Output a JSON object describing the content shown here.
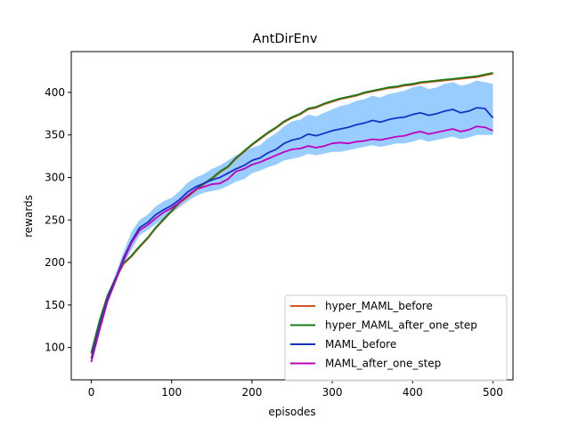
{
  "chart_data": {
    "type": "line",
    "title": "AntDirEnv",
    "xlabel": "episodes",
    "ylabel": "rewards",
    "xlim": [
      -25,
      525
    ],
    "ylim": [
      62,
      448
    ],
    "xticks": [
      0,
      100,
      200,
      300,
      400,
      500
    ],
    "yticks": [
      100,
      150,
      200,
      250,
      300,
      350,
      400
    ],
    "grid": false,
    "legend_position": "lower-right",
    "shaded_band": {
      "color": "#1e90ff",
      "around_series": "MAML_before",
      "x": [
        0,
        10,
        20,
        30,
        40,
        50,
        60,
        70,
        80,
        90,
        100,
        110,
        120,
        130,
        140,
        150,
        160,
        170,
        180,
        190,
        200,
        210,
        220,
        230,
        240,
        250,
        260,
        270,
        280,
        290,
        300,
        310,
        320,
        330,
        340,
        350,
        360,
        370,
        380,
        390,
        400,
        410,
        420,
        430,
        440,
        450,
        460,
        470,
        480,
        490,
        500
      ],
      "lower": [
        80,
        118,
        152,
        175,
        198,
        215,
        232,
        238,
        245,
        252,
        258,
        265,
        272,
        278,
        282,
        284,
        286,
        290,
        295,
        298,
        305,
        308,
        312,
        315,
        320,
        322,
        324,
        328,
        326,
        328,
        330,
        330,
        332,
        334,
        336,
        338,
        336,
        338,
        340,
        340,
        342,
        345,
        342,
        344,
        346,
        348,
        345,
        347,
        350,
        350,
        350
      ],
      "upper": [
        95,
        132,
        162,
        186,
        212,
        236,
        250,
        256,
        266,
        272,
        276,
        284,
        294,
        300,
        304,
        310,
        314,
        320,
        326,
        330,
        335,
        338,
        346,
        352,
        360,
        366,
        368,
        374,
        372,
        376,
        380,
        384,
        386,
        390,
        392,
        396,
        394,
        398,
        400,
        402,
        406,
        408,
        404,
        406,
        410,
        412,
        408,
        410,
        414,
        412,
        410
      ]
    },
    "series": [
      {
        "name": "hyper_MAML_before",
        "color": "#d9541e",
        "x": [
          0,
          10,
          20,
          30,
          40,
          50,
          60,
          70,
          80,
          90,
          100,
          110,
          120,
          130,
          140,
          150,
          160,
          170,
          180,
          190,
          200,
          210,
          220,
          230,
          240,
          250,
          260,
          270,
          280,
          290,
          300,
          310,
          320,
          330,
          340,
          350,
          360,
          370,
          380,
          390,
          400,
          410,
          420,
          430,
          440,
          450,
          460,
          470,
          480,
          490,
          500
        ],
        "values": [
          93,
          130,
          160,
          180,
          198,
          207,
          218,
          228,
          240,
          250,
          260,
          270,
          277,
          285,
          292,
          298,
          306,
          312,
          322,
          330,
          338,
          345,
          352,
          358,
          365,
          370,
          374,
          380,
          382,
          386,
          389,
          392,
          394,
          396,
          399,
          401,
          403,
          405,
          406,
          408,
          409,
          411,
          412,
          413,
          414,
          415,
          416,
          417,
          418,
          420,
          422
        ]
      },
      {
        "name": "hyper_MAML_after_one_step",
        "color": "#1a7a1a",
        "x": [
          0,
          10,
          20,
          30,
          40,
          50,
          60,
          70,
          80,
          90,
          100,
          110,
          120,
          130,
          140,
          150,
          160,
          170,
          180,
          190,
          200,
          210,
          220,
          230,
          240,
          250,
          260,
          270,
          280,
          290,
          300,
          310,
          320,
          330,
          340,
          350,
          360,
          370,
          380,
          390,
          400,
          410,
          420,
          430,
          440,
          450,
          460,
          470,
          480,
          490,
          500
        ],
        "values": [
          94,
          131,
          161,
          181,
          199,
          208,
          219,
          229,
          241,
          251,
          261,
          271,
          278,
          286,
          293,
          299,
          307,
          313,
          323,
          331,
          339,
          346,
          353,
          359,
          366,
          371,
          375,
          381,
          383,
          387,
          390,
          393,
          395,
          397,
          400,
          402,
          404,
          406,
          407,
          409,
          410,
          412,
          413,
          414,
          415,
          416,
          417,
          418,
          419,
          421,
          423
        ]
      },
      {
        "name": "MAML_before",
        "color": "#1432c8",
        "x": [
          0,
          10,
          20,
          30,
          40,
          50,
          60,
          70,
          80,
          90,
          100,
          110,
          120,
          130,
          140,
          150,
          160,
          170,
          180,
          190,
          200,
          210,
          220,
          230,
          240,
          250,
          260,
          270,
          280,
          290,
          300,
          310,
          320,
          330,
          340,
          350,
          360,
          370,
          380,
          390,
          400,
          410,
          420,
          430,
          440,
          450,
          460,
          470,
          480,
          490,
          500
        ],
        "values": [
          87,
          124,
          157,
          180,
          205,
          225,
          241,
          247,
          256,
          262,
          267,
          274,
          283,
          289,
          293,
          297,
          300,
          305,
          310,
          314,
          320,
          323,
          329,
          333,
          340,
          344,
          346,
          351,
          349,
          352,
          355,
          357,
          359,
          362,
          364,
          367,
          365,
          368,
          370,
          371,
          374,
          376,
          373,
          375,
          378,
          380,
          376,
          378,
          382,
          381,
          370
        ]
      },
      {
        "name": "MAML_after_one_step",
        "color": "#c000c0",
        "x": [
          0,
          10,
          20,
          30,
          40,
          50,
          60,
          70,
          80,
          90,
          100,
          110,
          120,
          130,
          140,
          150,
          160,
          170,
          180,
          190,
          200,
          210,
          220,
          230,
          240,
          250,
          260,
          270,
          280,
          290,
          300,
          310,
          320,
          330,
          340,
          350,
          360,
          370,
          380,
          390,
          400,
          410,
          420,
          430,
          440,
          450,
          460,
          470,
          480,
          490,
          500
        ],
        "values": [
          83,
          120,
          154,
          178,
          202,
          223,
          238,
          244,
          252,
          259,
          264,
          271,
          279,
          286,
          289,
          292,
          293,
          298,
          307,
          310,
          315,
          318,
          322,
          326,
          330,
          333,
          334,
          337,
          335,
          337,
          340,
          341,
          340,
          342,
          343,
          345,
          344,
          346,
          348,
          349,
          352,
          354,
          351,
          353,
          355,
          357,
          354,
          356,
          360,
          359,
          355
        ]
      }
    ]
  }
}
